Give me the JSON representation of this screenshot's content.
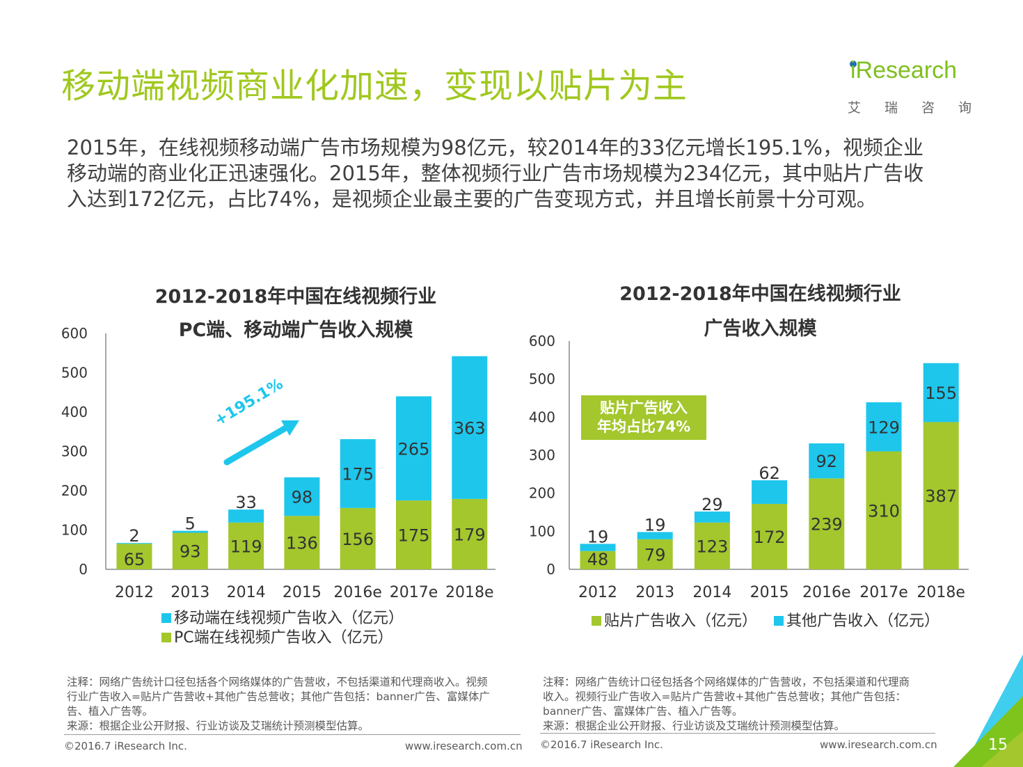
{
  "title": "移动端视频商业化加速，变现以贴片为主",
  "logo": {
    "brand": "iResearch",
    "cn": "艾瑞咨询"
  },
  "intro_lines": [
    "2015年，在线视频移动端广告市场规模为98亿元，较2014年的33亿元增长195.1%，视频企业",
    "移动端的商业化正迅速强化。2015年，整体视频行业广告市场规模为234亿元，其中贴片广告收",
    "入达到172亿元，占比74%，是视频企业最主要的广告变现方式，并且增长前景十分可观。"
  ],
  "colors": {
    "accent": "#a0c81e",
    "pc": "#a3c72d",
    "mobile": "#1ec6ec",
    "text": "#404040"
  },
  "chart_data": [
    {
      "type": "bar",
      "stacked": true,
      "title_line1": "2012-2018年中国在线视频行业",
      "title_line2": "PC端、移动端广告收入规模",
      "categories": [
        "2012",
        "2013",
        "2014",
        "2015",
        "2016e",
        "2017e",
        "2018e"
      ],
      "series": [
        {
          "name": "PC端在线视频广告收入（亿元）",
          "values": [
            65,
            93,
            119,
            136,
            156,
            175,
            179
          ]
        },
        {
          "name": "移动端在线视频广告收入（亿元）",
          "values": [
            2,
            5,
            33,
            98,
            175,
            265,
            363
          ]
        }
      ],
      "yticks": [
        "0",
        "100",
        "200",
        "300",
        "400",
        "500",
        "600"
      ],
      "ylim": [
        0,
        600
      ],
      "annotation": "+195.1%"
    },
    {
      "type": "bar",
      "stacked": true,
      "title_line1": "2012-2018年中国在线视频行业",
      "title_line2": "广告收入规模",
      "categories": [
        "2012",
        "2013",
        "2014",
        "2015",
        "2016e",
        "2017e",
        "2018e"
      ],
      "series": [
        {
          "name": "贴片广告收入（亿元）",
          "values": [
            48,
            79,
            123,
            172,
            239,
            310,
            387
          ]
        },
        {
          "name": "其他广告收入（亿元）",
          "values": [
            19,
            19,
            29,
            62,
            92,
            129,
            155
          ]
        }
      ],
      "yticks": [
        "0",
        "100",
        "200",
        "300",
        "400",
        "500",
        "600"
      ],
      "ylim": [
        0,
        600
      ],
      "annotation_line1": "贴片广告收入",
      "annotation_line2": "年均占比74%"
    }
  ],
  "notes": [
    {
      "lines": [
        "注释：网络广告统计口径包括各个网络媒体的广告营收，不包括渠道和代理商收入。视频",
        "行业广告收入=贴片广告营收+其他广告总营收；其他广告包括：banner广告、富媒体广",
        "告、植入广告等。",
        "来源：根据企业公开财报、行业访谈及艾瑞统计预测模型估算。"
      ],
      "copyright": "©2016.7 iResearch Inc.",
      "url": "www.iresearch.com.cn"
    },
    {
      "lines": [
        "注释：网络广告统计口径包括各个网络媒体的广告营收，不包括渠道和代理商",
        "收入。视频行业广告收入=贴片广告营收+其他广告总营收；其他广告包括：",
        "banner广告、富媒体广告、植入广告等。",
        "来源：根据企业公开财报、行业访谈及艾瑞统计预测模型估算。"
      ],
      "copyright": "©2016.7 iResearch Inc.",
      "url": "www.iresearch.com.cn"
    }
  ],
  "page_number": "15"
}
